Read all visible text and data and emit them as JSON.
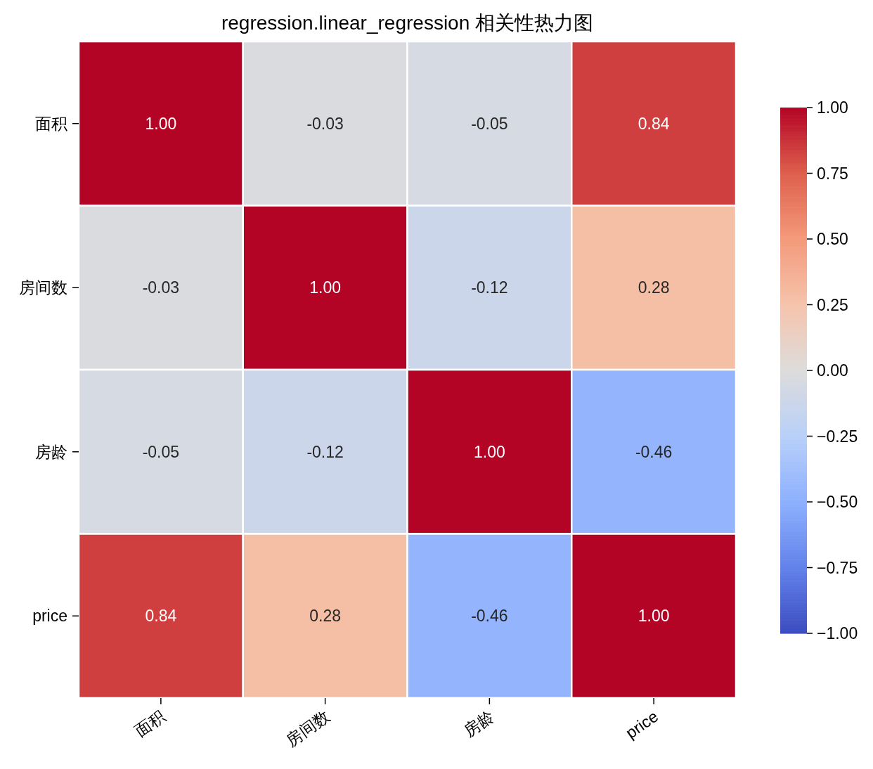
{
  "chart_data": {
    "type": "heatmap",
    "title": "regression.linear_regression 相关性热力图",
    "categories": [
      "面积",
      "房间数",
      "房龄",
      "price"
    ],
    "y_categories": [
      "面积",
      "房间数",
      "房龄",
      "price"
    ],
    "cells": [
      [
        1.0,
        -0.03,
        -0.05,
        0.84
      ],
      [
        -0.03,
        1.0,
        -0.12,
        0.28
      ],
      [
        -0.05,
        -0.12,
        1.0,
        -0.46
      ],
      [
        0.84,
        0.28,
        -0.46,
        1.0
      ]
    ],
    "cell_labels": [
      [
        "1.00",
        "-0.03",
        "-0.05",
        "0.84"
      ],
      [
        "-0.03",
        "1.00",
        "-0.12",
        "0.28"
      ],
      [
        "-0.05",
        "-0.12",
        "1.00",
        "-0.46"
      ],
      [
        "0.84",
        "0.28",
        "-0.46",
        "1.00"
      ]
    ],
    "clim": [
      -1,
      1
    ],
    "cticks": [
      {
        "value": -1,
        "label": "−1.00"
      },
      {
        "value": -0.75,
        "label": "−0.75"
      },
      {
        "value": -0.5,
        "label": "−0.50"
      },
      {
        "value": -0.25,
        "label": "−0.25"
      },
      {
        "value": 0,
        "label": "0.00"
      },
      {
        "value": 0.25,
        "label": "0.25"
      },
      {
        "value": 0.5,
        "label": "0.50"
      },
      {
        "value": 0.75,
        "label": "0.75"
      },
      {
        "value": 1,
        "label": "1.00"
      }
    ]
  }
}
